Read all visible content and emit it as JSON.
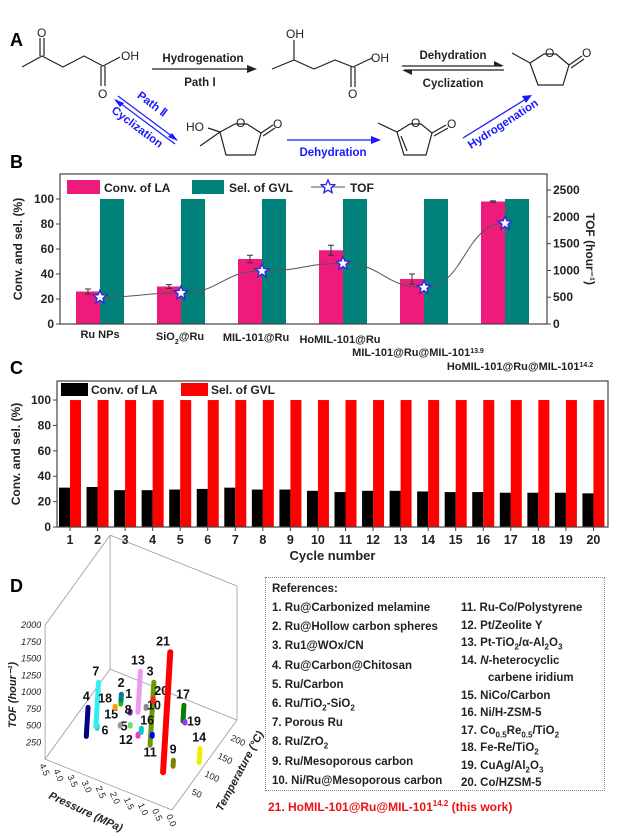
{
  "panel_labels": {
    "a": "A",
    "b": "B",
    "c": "C",
    "d": "D"
  },
  "scheme": {
    "atoms": {
      "O": "O",
      "OH": "OH",
      "HO": "HO"
    },
    "path1_top": "Hydrogenation",
    "path1_bottom": "Path Ⅰ",
    "eq_top": "Dehydration",
    "eq_bottom": "Cyclization",
    "path2_label": "Path Ⅱ",
    "path2_cyclization": "Cyclization",
    "path2_dehydration": "Dehydration",
    "path2_hydrogenation": "Hydrogenation",
    "colors": {
      "path1": "#222222",
      "path2": "#1a1aff"
    }
  },
  "chart_data": [
    {
      "type": "bar",
      "panel": "B",
      "categories": [
        [
          [
            "Ru NPs",
            ""
          ]
        ],
        [
          [
            "SiO",
            ""
          ],
          [
            "2",
            "sub"
          ],
          [
            "@Ru",
            ""
          ]
        ],
        [
          [
            "MIL-101@Ru",
            ""
          ]
        ],
        [
          [
            "HoMIL-101@Ru",
            ""
          ]
        ],
        [
          [
            "MIL-101@Ru@MIL-101",
            ""
          ],
          [
            "13.9",
            "sup"
          ]
        ],
        [
          [
            "HoMIL-101@Ru@MIL-101",
            ""
          ],
          [
            "14.2",
            "sup"
          ]
        ]
      ],
      "series": [
        {
          "name": "Conv. of LA",
          "axis": "left",
          "color": "#ee1b7b",
          "values": [
            26,
            30,
            52,
            59,
            36,
            98
          ],
          "errors": [
            2,
            1.5,
            3,
            4,
            4,
            0.5
          ]
        },
        {
          "name": "Sel. of GVL",
          "axis": "left",
          "color": "#00827a",
          "values": [
            100,
            100,
            100,
            100,
            100,
            100
          ]
        },
        {
          "name": "TOF",
          "axis": "right",
          "type": "line",
          "marker": "star",
          "color": "#2a2ae0",
          "values": [
            500,
            580,
            990,
            1130,
            680,
            1880
          ]
        }
      ],
      "ylabel": "Conv. and sel. (%)",
      "y2label": "TOF (hour⁻¹)",
      "ylim": [
        0,
        120
      ],
      "y2lim": [
        0,
        2800
      ],
      "yticks": [
        "0",
        "20",
        "40",
        "60",
        "80",
        "100"
      ],
      "y2ticks": [
        "0",
        "500",
        "1000",
        "1500",
        "2000",
        "2500"
      ],
      "legend": "top-left"
    },
    {
      "type": "bar",
      "panel": "C",
      "categories": [
        "1",
        "2",
        "3",
        "4",
        "5",
        "6",
        "7",
        "8",
        "9",
        "10",
        "11",
        "12",
        "13",
        "14",
        "15",
        "16",
        "17",
        "18",
        "19",
        "20"
      ],
      "series": [
        {
          "name": "Conv. of LA",
          "color": "#000000",
          "values": [
            31,
            31.5,
            29,
            29,
            29.5,
            30,
            31,
            29.5,
            29.5,
            28.5,
            27.5,
            28.5,
            28.5,
            28,
            27.5,
            27.5,
            27,
            27,
            27,
            26.5
          ]
        },
        {
          "name": "Sel. of GVL",
          "color": "#ff0000",
          "values": [
            100,
            100,
            100,
            100,
            100,
            100,
            100,
            100,
            100,
            100,
            100,
            100,
            100,
            100,
            100,
            100,
            100,
            100,
            100,
            100
          ]
        }
      ],
      "xlabel": "Cycle number",
      "ylabel": "Conv. and sel. (%)",
      "ylim": [
        0,
        115
      ],
      "yticks": [
        "0",
        "20",
        "40",
        "60",
        "80",
        "100"
      ],
      "legend": "top-left"
    },
    {
      "type": "scatter3d",
      "panel": "D",
      "xlabel": "Pressure (MPa)",
      "ylabel": "Temperature (°C)",
      "zlabel": "TOF (hour⁻¹)",
      "xticks": [
        "4.5",
        "4.0",
        "3.5",
        "3.0",
        "2.5",
        "2.0",
        "1.5",
        "1.0",
        "0.5",
        "0.0"
      ],
      "yticks": [
        "50",
        "100",
        "150",
        "200"
      ],
      "zticks": [
        "250",
        "500",
        "750",
        "1000",
        "1250",
        "1500",
        "1750",
        "2000"
      ],
      "points": [
        {
          "label": "1",
          "pressure": 3.2,
          "temperature": 150,
          "tof": [
            234,
            294
          ],
          "color": "#22c000"
        },
        {
          "label": "2",
          "pressure": 3.19,
          "temperature": 150,
          "tof": [
            294,
            384
          ],
          "color": "#008080"
        },
        {
          "label": "3",
          "pressure": 1.7,
          "temperature": 100,
          "tof": [
            142,
            1082
          ],
          "color": "#6a9a00"
        },
        {
          "label": "4",
          "pressure": 3.5,
          "temperature": 50,
          "tof": [
            239,
            672
          ],
          "color": "#000080"
        },
        {
          "label": "5",
          "pressure": 2.59,
          "temperature": 120,
          "tof": [
            170,
            195
          ],
          "color": "#66dd66"
        },
        {
          "label": "6",
          "pressure": 3.12,
          "temperature": 50,
          "tof": [
            424,
            469
          ],
          "color": "#33cccc"
        },
        {
          "label": "7",
          "pressure": 3.16,
          "temperature": 50,
          "tof": [
            448,
            1104
          ],
          "color": "#33eeee"
        },
        {
          "label": "8",
          "pressure": 2.87,
          "temperature": 150,
          "tof": [
            155,
            185
          ],
          "color": "#7030a0"
        },
        {
          "label": "9",
          "pressure": 0.7,
          "temperature": 80,
          "tof": [
            105,
            194
          ],
          "color": "#808000"
        },
        {
          "label": "10",
          "pressure": 2.58,
          "temperature": 180,
          "tof": [
            115,
            145
          ],
          "color": "#888888"
        },
        {
          "label": "11",
          "pressure": 1.81,
          "temperature": 120,
          "tof": [
            150,
            180
          ],
          "color": "#0000ff"
        },
        {
          "label": "12",
          "pressure": 2.13,
          "temperature": 100,
          "tof": [
            205,
            235
          ],
          "color": "#ff33cc"
        },
        {
          "label": "13",
          "pressure": 2.59,
          "temperature": 150,
          "tof": [
            216,
            828
          ],
          "color": "#ee99ee"
        },
        {
          "label": "14",
          "pressure": 0.05,
          "temperature": 110,
          "tof": [
            112,
            321
          ],
          "color": "#eeee00"
        },
        {
          "label": "15",
          "pressure": 2.76,
          "temperature": 100,
          "tof": [
            250,
            272
          ],
          "color": "#999999"
        },
        {
          "label": "16",
          "pressure": 2.2,
          "temperature": 120,
          "tof": [
            143,
            203
          ],
          "color": "#00cccc"
        },
        {
          "label": "17",
          "pressure": 1.27,
          "temperature": 180,
          "tof": [
            143,
            382
          ],
          "color": "#008000"
        },
        {
          "label": "18",
          "pressure": 3.4,
          "temperature": 150,
          "tof": [
            140,
            168
          ],
          "color": "#ff9900"
        },
        {
          "label": "19",
          "pressure": 1.2,
          "temperature": 180,
          "tof": [
            128,
            152
          ],
          "color": "#9933ff"
        },
        {
          "label": "20",
          "pressure": 2.51,
          "temperature": 200,
          "tof": [
            120,
            160
          ],
          "color": "#ff2222"
        },
        {
          "label": "21",
          "pressure": 0.87,
          "temperature": 60,
          "tof": [
            94,
            1885
          ],
          "color": "#ff0000"
        }
      ]
    }
  ],
  "references": {
    "title": "References:",
    "items": [
      [
        [
          "1. Ru@Carbonized melamine",
          ""
        ]
      ],
      [
        [
          "2. Ru@Hollow carbon spheres",
          ""
        ]
      ],
      [
        [
          "3. Ru1@WOx/CN",
          ""
        ]
      ],
      [
        [
          "4. Ru@Carbon@Chitosan",
          ""
        ]
      ],
      [
        [
          "5. Ru/Carbon",
          ""
        ]
      ],
      [
        [
          "6. Ru/TiO",
          ""
        ],
        [
          "2",
          "sub"
        ],
        [
          "-SiO",
          ""
        ],
        [
          "2",
          "sub"
        ]
      ],
      [
        [
          "7. Porous Ru",
          ""
        ]
      ],
      [
        [
          "8. Ru/ZrO",
          ""
        ],
        [
          "2",
          "sub"
        ]
      ],
      [
        [
          "9. Ru/Mesoporous carbon",
          ""
        ]
      ],
      [
        [
          "10. Ni/Ru@Mesoporous carbon",
          ""
        ]
      ],
      [
        [
          "11. Ru-Co/Polystyrene",
          ""
        ]
      ],
      [
        [
          "12. Pt/Zeolite Y",
          ""
        ]
      ],
      [
        [
          "13. Pt-TiO",
          ""
        ],
        [
          "2",
          "sub"
        ],
        [
          "/α-Al",
          ""
        ],
        [
          "2",
          "sub"
        ],
        [
          "O",
          ""
        ],
        [
          "3",
          "sub"
        ]
      ],
      [
        [
          "14. ",
          ""
        ],
        [
          "N",
          "i"
        ],
        [
          "-heterocyclic",
          ""
        ],
        [
          "carbene iridium",
          "br"
        ]
      ],
      [
        [
          "15. NiCo/Carbon",
          ""
        ]
      ],
      [
        [
          "16. Ni/H-ZSM-5",
          ""
        ]
      ],
      [
        [
          "17. Co",
          ""
        ],
        [
          "0.5",
          "sub"
        ],
        [
          "Re",
          ""
        ],
        [
          "0.5",
          "sub"
        ],
        [
          "/TiO",
          ""
        ],
        [
          "2",
          "sub"
        ]
      ],
      [
        [
          "18. Fe-Re/TiO",
          ""
        ],
        [
          "2",
          "sub"
        ]
      ],
      [
        [
          "19. CuAg/Al",
          ""
        ],
        [
          "2",
          "sub"
        ],
        [
          "O",
          ""
        ],
        [
          "3",
          "sub"
        ]
      ],
      [
        [
          "20. Co/HZSM-5",
          ""
        ]
      ]
    ],
    "this_work": [
      [
        "21. HoMIL-101@Ru@MIL-101",
        ""
      ],
      [
        "14.2",
        "sup"
      ],
      [
        " (this work)",
        ""
      ]
    ],
    "this_work_color": "#ee1111"
  }
}
